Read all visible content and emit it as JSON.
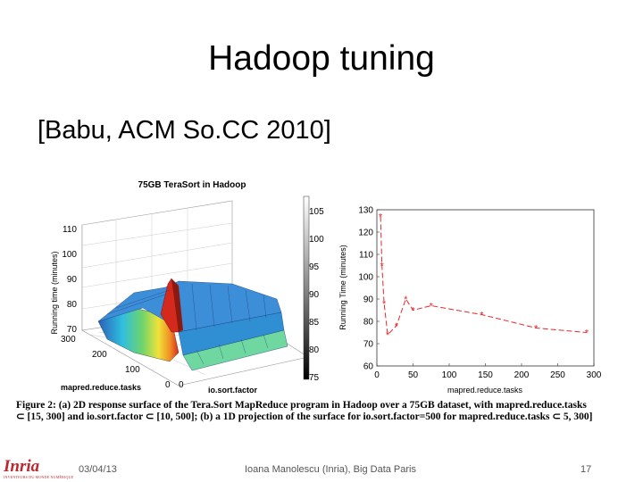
{
  "slide": {
    "title": "Hadoop tuning",
    "subtitle": "[Babu, ACM So.CC 2010]",
    "caption_line1": "Figure 2: (a) 2D response surface of the Tera.Sort MapReduce program in Hadoop over a 75GB dataset, with mapred.reduce.tasks",
    "caption_line2": "⊂ [15, 300] and io.sort.factor ⊂ [10, 500]; (b) a 1D projection of the surface for io.sort.factor=500 for mapred.reduce.tasks ⊂ 5, 300]",
    "footer_date": "03/04/13",
    "footer_author": "Ioana Manolescu (Inria), Big Data Paris",
    "footer_page": "17",
    "logo_text": "Inria",
    "logo_tagline": "INVENTEURS DU MONDE NUMÉRIQUE"
  },
  "colors": {
    "line": "#e8292b",
    "accent_logo": "#c0272d"
  },
  "chart_data": [
    {
      "type": "surface",
      "title": "75GB TeraSort in Hadoop",
      "zlabel": "Running time (minutes)",
      "xlabel": "mapred.reduce.tasks",
      "ylabel": "io.sort.factor",
      "z_ticks": [
        "70",
        "80",
        "90",
        "100",
        "110"
      ],
      "x_ticks": [
        "300",
        "200",
        "100",
        "0"
      ],
      "y_ticks": [
        "0"
      ],
      "colorbar_ticks": [
        "105",
        "100",
        "95",
        "90",
        "85",
        "80",
        "75"
      ],
      "colorbar_range": [
        75,
        105
      ]
    },
    {
      "type": "line",
      "xlabel": "mapred.reduce.tasks",
      "ylabel": "Running Time (minutes)",
      "xlim": [
        0,
        300
      ],
      "ylim": [
        60,
        130
      ],
      "x_ticks": [
        "0",
        "50",
        "100",
        "150",
        "200",
        "250",
        "300"
      ],
      "y_ticks": [
        "60",
        "70",
        "80",
        "90",
        "100",
        "110",
        "120",
        "130"
      ],
      "series": [
        {
          "name": "io.sort.factor=500",
          "x": [
            5,
            7,
            10,
            15,
            27,
            40,
            50,
            75,
            145,
            220,
            290
          ],
          "y": [
            127,
            105,
            88,
            74,
            78,
            90,
            85,
            87,
            83,
            77,
            75
          ]
        }
      ]
    }
  ]
}
